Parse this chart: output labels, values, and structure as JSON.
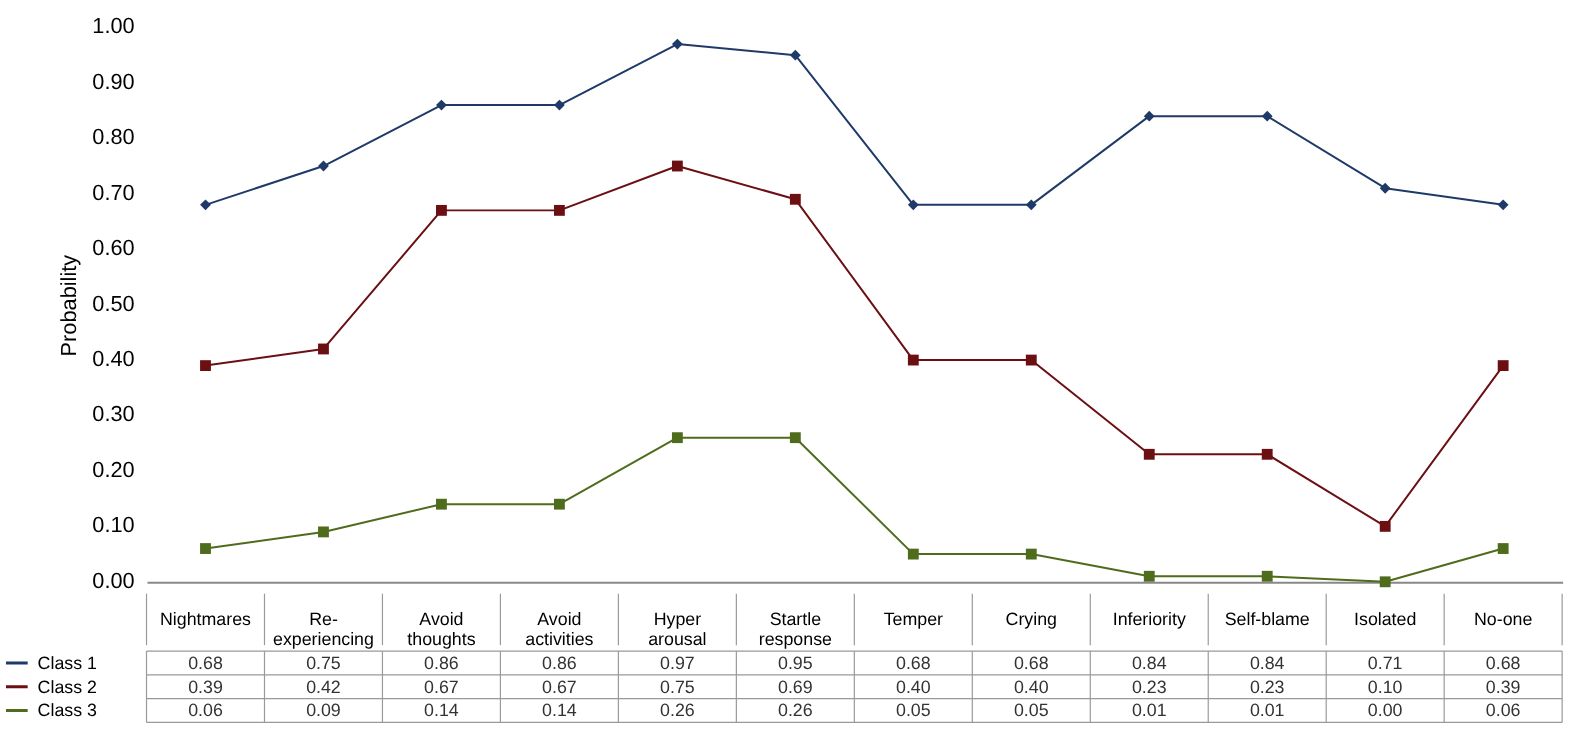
{
  "chart_data": {
    "type": "line",
    "ylabel": "Probability",
    "categories": [
      "Nightmares",
      "Re-experiencing",
      "Avoid thoughts",
      "Avoid activities",
      "Hyper arousal",
      "Startle response",
      "Temper",
      "Crying",
      "Inferiority",
      "Self-blame",
      "Isolated",
      "No-one"
    ],
    "series": [
      {
        "name": "Class 1",
        "color": "#1f3a68",
        "marker": "diamond",
        "values": [
          0.68,
          0.75,
          0.86,
          0.86,
          0.97,
          0.95,
          0.68,
          0.68,
          0.84,
          0.84,
          0.71,
          0.68
        ],
        "value_labels": [
          "0.68",
          "0.75",
          "0.86",
          "0.86",
          "0.97",
          "0.95",
          "0.68",
          "0.68",
          "0.84",
          "0.84",
          "0.71",
          "0.68"
        ]
      },
      {
        "name": "Class 2",
        "color": "#6b0f12",
        "marker": "square",
        "values": [
          0.39,
          0.42,
          0.67,
          0.67,
          0.75,
          0.69,
          0.4,
          0.4,
          0.23,
          0.23,
          0.1,
          0.39
        ],
        "value_labels": [
          "0.39",
          "0.42",
          "0.67",
          "0.67",
          "0.75",
          "0.69",
          "0.40",
          "0.40",
          "0.23",
          "0.23",
          "0.10",
          "0.39"
        ]
      },
      {
        "name": "Class 3",
        "color": "#4f6b1c",
        "marker": "square",
        "values": [
          0.06,
          0.09,
          0.14,
          0.14,
          0.26,
          0.26,
          0.05,
          0.05,
          0.01,
          0.01,
          0.0,
          0.06
        ],
        "value_labels": [
          "0.06",
          "0.09",
          "0.14",
          "0.14",
          "0.26",
          "0.26",
          "0.05",
          "0.05",
          "0.01",
          "0.01",
          "0.00",
          "0.06"
        ]
      }
    ],
    "ylim": [
      0,
      1
    ],
    "yticks": [
      {
        "value": 0,
        "label": "0.00"
      },
      {
        "value": 0.1,
        "label": "0.10"
      },
      {
        "value": 0.2,
        "label": "0.20"
      },
      {
        "value": 0.3,
        "label": "0.30"
      },
      {
        "value": 0.4,
        "label": "0.40"
      },
      {
        "value": 0.5,
        "label": "0.50"
      },
      {
        "value": 0.6,
        "label": "0.60"
      },
      {
        "value": 0.7,
        "label": "0.70"
      },
      {
        "value": 0.8,
        "label": "0.80"
      },
      {
        "value": 0.9,
        "label": "0.90"
      },
      {
        "value": 1.0,
        "label": "1.00"
      }
    ],
    "grid": false,
    "legend": "bottom left"
  }
}
